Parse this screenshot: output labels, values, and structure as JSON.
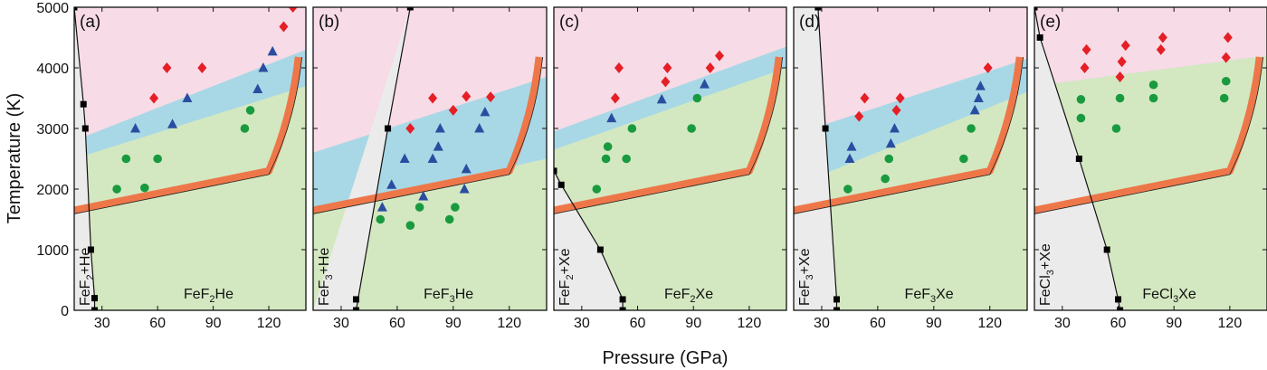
{
  "axes": {
    "xlabel": "Pressure (GPa)",
    "ylabel": "Temperature (K)"
  },
  "colors": {
    "stable_region": "#d3e8c1",
    "transition_region": "#a8d8e6",
    "decomposed_region": "#f7dbe6",
    "phase_separated_region": "#ebebeb",
    "melting_curve": "#ee7749",
    "solid_marker": "#1a9a3f",
    "transition_marker": "#2a4da0",
    "decomposed_marker": "#e61e25",
    "boundary_marker": "#000000"
  },
  "chart_data": [
    {
      "type": "scatter",
      "panel": "(a)",
      "left_phase": {
        "main": "FeF",
        "sub": "2",
        "rest": "+He"
      },
      "right_phase": {
        "main": "FeF",
        "sub": "2",
        "rest": "He"
      },
      "xlim": [
        15,
        140
      ],
      "ylim": [
        0,
        5000
      ],
      "xticks": [
        30,
        60,
        90,
        120
      ],
      "xtick_labels": [
        "30",
        "60",
        "90",
        "120"
      ],
      "yticks": [
        0,
        1000,
        2000,
        3000,
        4000,
        5000
      ],
      "ytick_labels": [
        "0",
        "1000",
        "2000",
        "3000",
        "4000",
        "5000"
      ],
      "boundary_line": {
        "x": [
          15,
          20,
          21,
          24,
          26,
          26
        ],
        "y": [
          5000,
          3400,
          3000,
          1000,
          200,
          0
        ]
      },
      "boundary_points": {
        "x": [
          15,
          20,
          21,
          24,
          26,
          26
        ],
        "y": [
          5000,
          3400,
          3000,
          1000,
          200,
          0
        ]
      },
      "green_top": {
        "x": [
          15,
          140
        ],
        "y": [
          2500,
          3700
        ]
      },
      "blue_top": {
        "x": [
          15,
          140
        ],
        "y": [
          2800,
          4300
        ]
      },
      "series": [
        {
          "marker": "circle",
          "x": [
            38,
            43,
            53,
            60,
            107,
            110
          ],
          "y": [
            2000,
            2500,
            2020,
            2500,
            3000,
            3300
          ]
        },
        {
          "marker": "triangle",
          "x": [
            48,
            68,
            76,
            114,
            117,
            122
          ],
          "y": [
            3000,
            3070,
            3500,
            3650,
            4000,
            4270
          ]
        },
        {
          "marker": "diamond",
          "x": [
            58,
            65,
            84,
            128,
            133
          ],
          "y": [
            3500,
            4000,
            4000,
            4680,
            5000
          ]
        }
      ]
    },
    {
      "type": "scatter",
      "panel": "(b)",
      "left_phase": {
        "main": "FeF",
        "sub": "3",
        "rest": "+He"
      },
      "right_phase": {
        "main": "FeF",
        "sub": "3",
        "rest": "He"
      },
      "xlim": [
        15,
        140
      ],
      "ylim": [
        0,
        5000
      ],
      "xticks": [
        30,
        60,
        90,
        120
      ],
      "xtick_labels": [
        "30",
        "60",
        "90",
        "120"
      ],
      "yticks": [
        0,
        1000,
        2000,
        3000,
        4000,
        5000
      ],
      "ytick_labels": [
        "",
        "",
        "",
        "",
        "",
        ""
      ],
      "boundary_line": {
        "x": [
          38,
          55,
          67
        ],
        "y": [
          0,
          3000,
          5000
        ]
      },
      "boundary_points": {
        "x": [
          38,
          38,
          55,
          67
        ],
        "y": [
          0,
          180,
          3000,
          5000
        ]
      },
      "green_top": {
        "x": [
          15,
          140
        ],
        "y": [
          1650,
          2500
        ]
      },
      "blue_top": {
        "x": [
          15,
          140
        ],
        "y": [
          2600,
          3850
        ]
      },
      "series": [
        {
          "marker": "circle",
          "x": [
            51,
            67,
            72,
            88,
            91
          ],
          "y": [
            1500,
            1400,
            1700,
            1500,
            1700
          ]
        },
        {
          "marker": "triangle",
          "x": [
            52,
            57,
            64,
            74,
            79,
            82,
            83,
            96,
            97,
            104,
            107
          ],
          "y": [
            1700,
            2070,
            2500,
            1880,
            2500,
            2700,
            3000,
            2000,
            2330,
            3000,
            3270
          ]
        },
        {
          "marker": "diamond",
          "x": [
            67,
            79,
            90,
            97,
            110
          ],
          "y": [
            3000,
            3500,
            3300,
            3530,
            3520
          ]
        }
      ]
    },
    {
      "type": "scatter",
      "panel": "(c)",
      "left_phase": {
        "main": "FeF",
        "sub": "2",
        "rest": "+Xe"
      },
      "right_phase": {
        "main": "FeF",
        "sub": "2",
        "rest": "Xe"
      },
      "xlim": [
        15,
        140
      ],
      "ylim": [
        0,
        5000
      ],
      "xticks": [
        30,
        60,
        90,
        120
      ],
      "xtick_labels": [
        "30",
        "60",
        "90",
        "120"
      ],
      "yticks": [
        0,
        1000,
        2000,
        3000,
        4000,
        5000
      ],
      "ytick_labels": [
        "",
        "",
        "",
        "",
        "",
        ""
      ],
      "boundary_line": {
        "x": [
          15,
          19,
          40,
          52,
          52
        ],
        "y": [
          2300,
          2070,
          1000,
          180,
          0
        ]
      },
      "boundary_points": {
        "x": [
          15,
          19,
          40,
          52,
          52
        ],
        "y": [
          2300,
          2070,
          1000,
          180,
          0
        ]
      },
      "green_top": {
        "x": [
          15,
          140
        ],
        "y": [
          2650,
          4000
        ]
      },
      "blue_top": {
        "x": [
          15,
          140
        ],
        "y": [
          2950,
          4350
        ]
      },
      "series": [
        {
          "marker": "circle",
          "x": [
            38,
            43,
            44,
            54,
            57,
            89,
            92
          ],
          "y": [
            2000,
            2500,
            2700,
            2500,
            3000,
            3000,
            3500
          ]
        },
        {
          "marker": "triangle",
          "x": [
            46,
            73,
            96
          ],
          "y": [
            3170,
            3480,
            3730
          ]
        },
        {
          "marker": "diamond",
          "x": [
            48,
            50,
            75,
            76,
            99,
            104
          ],
          "y": [
            3500,
            4000,
            3770,
            4000,
            4000,
            4200
          ]
        }
      ]
    },
    {
      "type": "scatter",
      "panel": "(d)",
      "left_phase": {
        "main": "FeF",
        "sub": "3",
        "rest": "+Xe"
      },
      "right_phase": {
        "main": "FeF",
        "sub": "3",
        "rest": "Xe"
      },
      "xlim": [
        15,
        140
      ],
      "ylim": [
        0,
        5000
      ],
      "xticks": [
        30,
        60,
        90,
        120
      ],
      "xtick_labels": [
        "30",
        "60",
        "90",
        "120"
      ],
      "yticks": [
        0,
        1000,
        2000,
        3000,
        4000,
        5000
      ],
      "ytick_labels": [
        "",
        "",
        "",
        "",
        "",
        ""
      ],
      "boundary_line": {
        "x": [
          28,
          32,
          38,
          38
        ],
        "y": [
          5000,
          3000,
          180,
          0
        ]
      },
      "boundary_points": {
        "x": [
          28,
          32,
          38,
          38
        ],
        "y": [
          5000,
          3000,
          180,
          0
        ]
      },
      "green_top": {
        "x": [
          15,
          140
        ],
        "y": [
          2050,
          3600
        ]
      },
      "blue_top": {
        "x": [
          15,
          140
        ],
        "y": [
          2900,
          4150
        ]
      },
      "series": [
        {
          "marker": "circle",
          "x": [
            44,
            64,
            66,
            106,
            110
          ],
          "y": [
            2000,
            2170,
            2500,
            2500,
            3000
          ]
        },
        {
          "marker": "triangle",
          "x": [
            45,
            46,
            67,
            69,
            112,
            114,
            115
          ],
          "y": [
            2500,
            2700,
            2750,
            3000,
            3300,
            3500,
            3700
          ]
        },
        {
          "marker": "diamond",
          "x": [
            50,
            53,
            70,
            72,
            119
          ],
          "y": [
            3200,
            3500,
            3300,
            3500,
            4000
          ]
        }
      ]
    },
    {
      "type": "scatter",
      "panel": "(e)",
      "left_phase": {
        "main": "FeCl",
        "sub": "3",
        "rest": "+Xe"
      },
      "right_phase": {
        "main": "FeCl",
        "sub": "3",
        "rest": "Xe"
      },
      "xlim": [
        15,
        140
      ],
      "ylim": [
        0,
        5000
      ],
      "xticks": [
        30,
        60,
        90,
        120
      ],
      "xtick_labels": [
        "30",
        "60",
        "90",
        "120"
      ],
      "yticks": [
        0,
        1000,
        2000,
        3000,
        4000,
        5000
      ],
      "ytick_labels": [
        "",
        "",
        "",
        "",
        "",
        ""
      ],
      "boundary_line": {
        "x": [
          15,
          18,
          39,
          54,
          60,
          61
        ],
        "y": [
          5000,
          4500,
          2500,
          1000,
          180,
          0
        ]
      },
      "boundary_points": {
        "x": [
          15,
          18,
          39,
          54,
          60,
          61
        ],
        "y": [
          5000,
          4500,
          2500,
          1000,
          180,
          0
        ]
      },
      "green_top": {
        "x": [
          15,
          140
        ],
        "y": [
          3700,
          4200
        ]
      },
      "blue_top": {
        "x": [
          15,
          140
        ],
        "y": [
          3700,
          4200
        ]
      },
      "series": [
        {
          "marker": "circle",
          "x": [
            40,
            40,
            59,
            61,
            79,
            79,
            117,
            118
          ],
          "y": [
            3170,
            3480,
            3000,
            3500,
            3500,
            3720,
            3500,
            3780
          ]
        },
        {
          "marker": "triangle",
          "x": [],
          "y": []
        },
        {
          "marker": "diamond",
          "x": [
            42,
            43,
            61,
            62,
            64,
            83,
            84,
            118,
            119
          ],
          "y": [
            4000,
            4300,
            3850,
            4100,
            4370,
            4300,
            4500,
            4170,
            4500
          ]
        }
      ]
    }
  ]
}
